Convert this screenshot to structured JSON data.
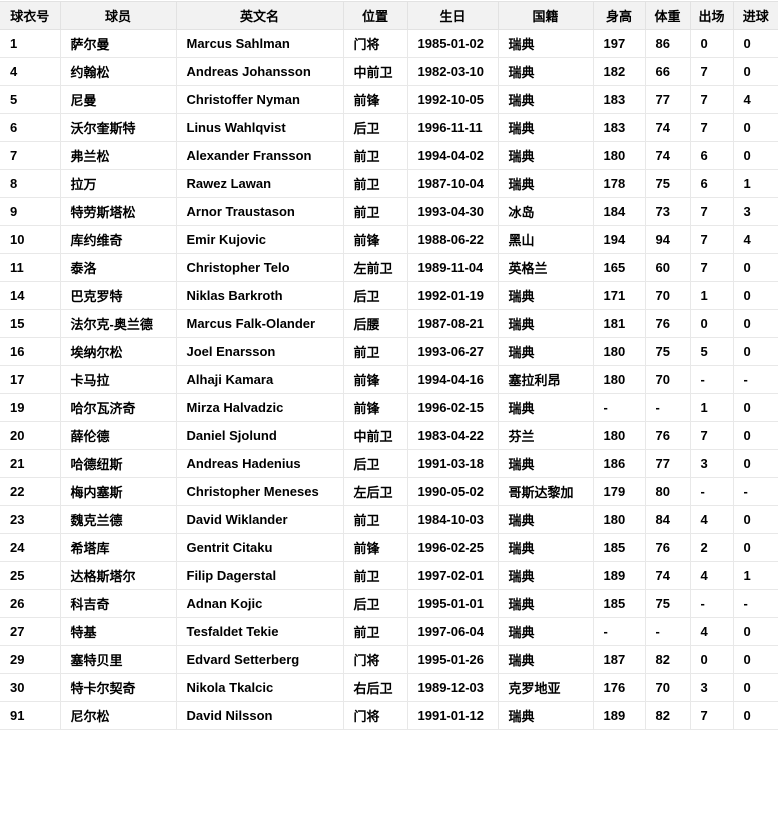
{
  "chart_data": {
    "type": "table",
    "columns": [
      {
        "key": "number",
        "label": "球衣号"
      },
      {
        "key": "player",
        "label": "球员"
      },
      {
        "key": "english_name",
        "label": "英文名"
      },
      {
        "key": "position",
        "label": "位置"
      },
      {
        "key": "birthday",
        "label": "生日"
      },
      {
        "key": "nationality",
        "label": "国籍"
      },
      {
        "key": "height",
        "label": "身高"
      },
      {
        "key": "weight",
        "label": "体重"
      },
      {
        "key": "appearances",
        "label": "出场"
      },
      {
        "key": "goals",
        "label": "进球"
      }
    ],
    "rows": [
      [
        "1",
        "萨尔曼",
        "Marcus Sahlman",
        "门将",
        "1985-01-02",
        "瑞典",
        "197",
        "86",
        "0",
        "0"
      ],
      [
        "4",
        "约翰松",
        "Andreas Johansson",
        "中前卫",
        "1982-03-10",
        "瑞典",
        "182",
        "66",
        "7",
        "0"
      ],
      [
        "5",
        "尼曼",
        "Christoffer Nyman",
        "前锋",
        "1992-10-05",
        "瑞典",
        "183",
        "77",
        "7",
        "4"
      ],
      [
        "6",
        "沃尔奎斯特",
        "Linus Wahlqvist",
        "后卫",
        "1996-11-11",
        "瑞典",
        "183",
        "74",
        "7",
        "0"
      ],
      [
        "7",
        "弗兰松",
        "Alexander Fransson",
        "前卫",
        "1994-04-02",
        "瑞典",
        "180",
        "74",
        "6",
        "0"
      ],
      [
        "8",
        "拉万",
        "Rawez Lawan",
        "前卫",
        "1987-10-04",
        "瑞典",
        "178",
        "75",
        "6",
        "1"
      ],
      [
        "9",
        "特劳斯塔松",
        "Arnor Traustason",
        "前卫",
        "1993-04-30",
        "冰岛",
        "184",
        "73",
        "7",
        "3"
      ],
      [
        "10",
        "库约维奇",
        "Emir Kujovic",
        "前锋",
        "1988-06-22",
        "黑山",
        "194",
        "94",
        "7",
        "4"
      ],
      [
        "11",
        "泰洛",
        "Christopher Telo",
        "左前卫",
        "1989-11-04",
        "英格兰",
        "165",
        "60",
        "7",
        "0"
      ],
      [
        "14",
        "巴克罗特",
        "Niklas Barkroth",
        "后卫",
        "1992-01-19",
        "瑞典",
        "171",
        "70",
        "1",
        "0"
      ],
      [
        "15",
        "法尔克-奥兰德",
        "Marcus Falk-Olander",
        "后腰",
        "1987-08-21",
        "瑞典",
        "181",
        "76",
        "0",
        "0"
      ],
      [
        "16",
        "埃纳尔松",
        "Joel Enarsson",
        "前卫",
        "1993-06-27",
        "瑞典",
        "180",
        "75",
        "5",
        "0"
      ],
      [
        "17",
        "卡马拉",
        "Alhaji Kamara",
        "前锋",
        "1994-04-16",
        "塞拉利昂",
        "180",
        "70",
        "-",
        "-"
      ],
      [
        "19",
        "哈尔瓦济奇",
        "Mirza Halvadzic",
        "前锋",
        "1996-02-15",
        "瑞典",
        "-",
        "-",
        "1",
        "0"
      ],
      [
        "20",
        "薛伦德",
        "Daniel Sjolund",
        "中前卫",
        "1983-04-22",
        "芬兰",
        "180",
        "76",
        "7",
        "0"
      ],
      [
        "21",
        "哈德纽斯",
        "Andreas Hadenius",
        "后卫",
        "1991-03-18",
        "瑞典",
        "186",
        "77",
        "3",
        "0"
      ],
      [
        "22",
        "梅内塞斯",
        "Christopher Meneses",
        "左后卫",
        "1990-05-02",
        "哥斯达黎加",
        "179",
        "80",
        "-",
        "-"
      ],
      [
        "23",
        "魏克兰德",
        "David Wiklander",
        "前卫",
        "1984-10-03",
        "瑞典",
        "180",
        "84",
        "4",
        "0"
      ],
      [
        "24",
        "希塔库",
        "Gentrit Citaku",
        "前锋",
        "1996-02-25",
        "瑞典",
        "185",
        "76",
        "2",
        "0"
      ],
      [
        "25",
        "达格斯塔尔",
        "Filip Dagerstal",
        "前卫",
        "1997-02-01",
        "瑞典",
        "189",
        "74",
        "4",
        "1"
      ],
      [
        "26",
        "科吉奇",
        "Adnan Kojic",
        "后卫",
        "1995-01-01",
        "瑞典",
        "185",
        "75",
        "-",
        "-"
      ],
      [
        "27",
        "特基",
        "Tesfaldet Tekie",
        "前卫",
        "1997-06-04",
        "瑞典",
        "-",
        "-",
        "4",
        "0"
      ],
      [
        "29",
        "塞特贝里",
        "Edvard Setterberg",
        "门将",
        "1995-01-26",
        "瑞典",
        "187",
        "82",
        "0",
        "0"
      ],
      [
        "30",
        "特卡尔契奇",
        "Nikola Tkalcic",
        "右后卫",
        "1989-12-03",
        "克罗地亚",
        "176",
        "70",
        "3",
        "0"
      ],
      [
        "91",
        "尼尔松",
        "David Nilsson",
        "门将",
        "1991-01-12",
        "瑞典",
        "189",
        "82",
        "7",
        "0"
      ]
    ]
  },
  "colors": {
    "header_background": "#f2f2f2",
    "border": "#e8e8e8",
    "text": "#000000",
    "page_background": "#ffffff"
  }
}
